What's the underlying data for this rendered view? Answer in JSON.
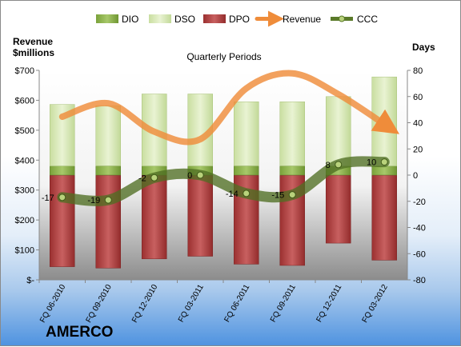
{
  "company": "AMERCO",
  "colors": {
    "dio": "#8fb34a",
    "dso": "#d7e8b4",
    "dpo": "#b34646",
    "revenue": "#ef8c3a",
    "ccc": "#5a7a2a"
  },
  "chart_data": {
    "type": "bar",
    "title": "Quarterly Periods",
    "ylabel_left": "Revenue\n$millions",
    "ylabel_right": "Days",
    "ylim_left": [
      0,
      700
    ],
    "ylim_right": [
      -80,
      80
    ],
    "yticks_left": [
      "$-",
      "$100",
      "$200",
      "$300",
      "$400",
      "$500",
      "$600",
      "$700"
    ],
    "yticks_right": [
      "-80",
      "-60",
      "-40",
      "-20",
      "0",
      "20",
      "40",
      "60",
      "80"
    ],
    "categories": [
      "FQ 06-2010",
      "FQ 09-2010",
      "FQ 12-2010",
      "FQ 03-2011",
      "FQ 06-2011",
      "FQ 09-2011",
      "FQ 12-2011",
      "FQ 03-2012"
    ],
    "legend_position": "top",
    "series": [
      {
        "name": "DIO",
        "type": "stacked-bar",
        "axis": "right",
        "values": [
          7,
          7,
          7,
          7,
          7,
          7,
          7,
          7
        ]
      },
      {
        "name": "DSO",
        "type": "stacked-bar",
        "axis": "right",
        "values": [
          47,
          46,
          55,
          55,
          49,
          49,
          53,
          68
        ]
      },
      {
        "name": "DPO",
        "type": "stacked-bar",
        "axis": "right",
        "values": [
          -70,
          -71,
          -64,
          -62,
          -68,
          -69,
          -52,
          -65
        ]
      },
      {
        "name": "Revenue",
        "type": "line",
        "axis": "left",
        "values": [
          545,
          590,
          495,
          470,
          640,
          690,
          620,
          520
        ]
      },
      {
        "name": "CCC",
        "type": "line",
        "axis": "right",
        "values": [
          -17,
          -19,
          -2,
          0,
          -14,
          -15,
          8,
          10
        ]
      }
    ],
    "grid": false
  }
}
